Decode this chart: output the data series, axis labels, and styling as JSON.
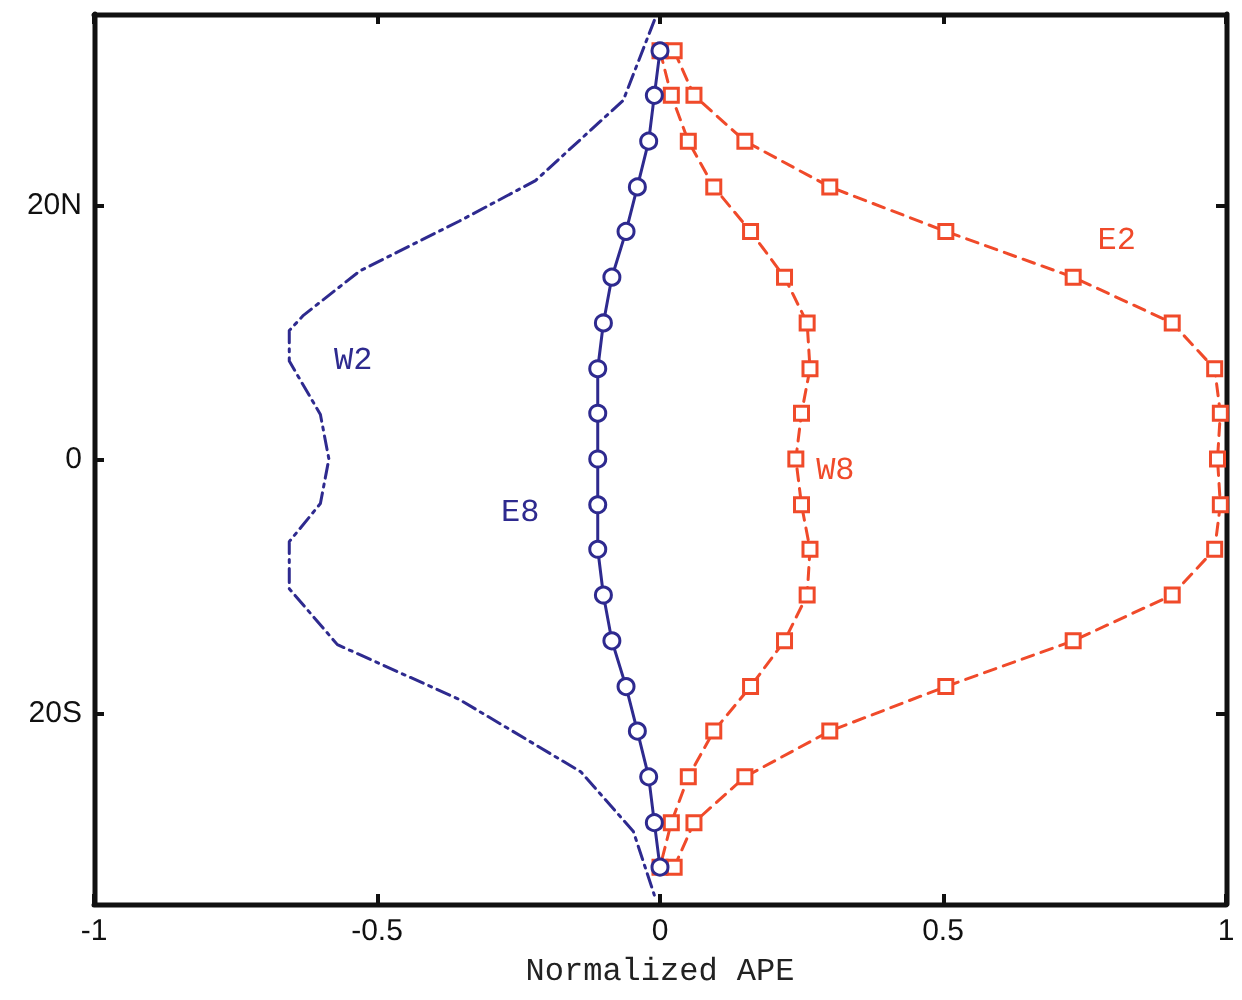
{
  "chart_data": {
    "type": "line",
    "xlabel": "Normalized APE",
    "xlim": [
      -1,
      1
    ],
    "xticks": [
      -1,
      -0.5,
      0,
      0.5,
      1
    ],
    "ylim": [
      -35,
      35
    ],
    "yticks": [
      {
        "value": -20,
        "label": "20S"
      },
      0,
      {
        "value": 20,
        "label": "20N"
      }
    ],
    "grid": false,
    "legend": false,
    "series": [
      {
        "name": "W2",
        "color": "#2e2a8f",
        "marker": "none",
        "line_style": "dashdot",
        "x": [
          -0.01,
          -0.065,
          -0.22,
          -0.355,
          -0.53,
          -0.63,
          -0.655,
          -0.655,
          -0.6,
          -0.585,
          -0.6,
          -0.655,
          -0.655,
          -0.57,
          -0.355,
          -0.14,
          -0.047,
          -0.01
        ],
        "values": [
          34.5,
          28.2,
          21.9,
          18.7,
          14.8,
          11.3,
          10.1,
          7.7,
          3.5,
          0,
          -3.5,
          -6.5,
          -10.2,
          -14.6,
          -18.9,
          -24.6,
          -29.3,
          -34.3
        ]
      },
      {
        "name": "E8",
        "color": "#2e2a8f",
        "marker": "circle",
        "line_style": "solid",
        "x": [
          0,
          -0.01,
          -0.02,
          -0.04,
          -0.06,
          -0.085,
          -0.1,
          -0.11,
          -0.11,
          -0.11,
          -0.11,
          -0.11,
          -0.1,
          -0.085,
          -0.06,
          -0.04,
          -0.02,
          -0.01,
          0
        ],
        "values": [
          32.1,
          28.6,
          25,
          21.4,
          17.9,
          14.3,
          10.7,
          7.1,
          3.6,
          0,
          -3.6,
          -7.1,
          -10.7,
          -14.3,
          -17.9,
          -21.4,
          -25,
          -28.6,
          -32.1
        ]
      },
      {
        "name": "W8",
        "color": "#f04a2a",
        "marker": "square",
        "line_style": "dashed",
        "x": [
          0.0,
          0.02,
          0.05,
          0.095,
          0.16,
          0.22,
          0.26,
          0.265,
          0.25,
          0.24,
          0.25,
          0.265,
          0.26,
          0.22,
          0.16,
          0.095,
          0.05,
          0.02,
          0.0
        ],
        "values": [
          32.1,
          28.6,
          25,
          21.4,
          17.9,
          14.3,
          10.7,
          7.1,
          3.6,
          0,
          -3.6,
          -7.1,
          -10.7,
          -14.3,
          -17.9,
          -21.4,
          -25,
          -28.6,
          -32.1
        ]
      },
      {
        "name": "E2",
        "color": "#f04a2a",
        "marker": "square",
        "line_style": "dashed",
        "x": [
          0.025,
          0.06,
          0.15,
          0.3,
          0.505,
          0.73,
          0.905,
          0.98,
          0.99,
          0.985,
          0.99,
          0.98,
          0.905,
          0.73,
          0.505,
          0.3,
          0.15,
          0.06,
          0.025
        ],
        "values": [
          32.1,
          28.6,
          25,
          21.4,
          17.9,
          14.3,
          10.7,
          7.1,
          3.6,
          0,
          -3.6,
          -7.1,
          -10.7,
          -14.3,
          -17.9,
          -21.4,
          -25,
          -28.6,
          -32.1
        ]
      }
    ]
  }
}
